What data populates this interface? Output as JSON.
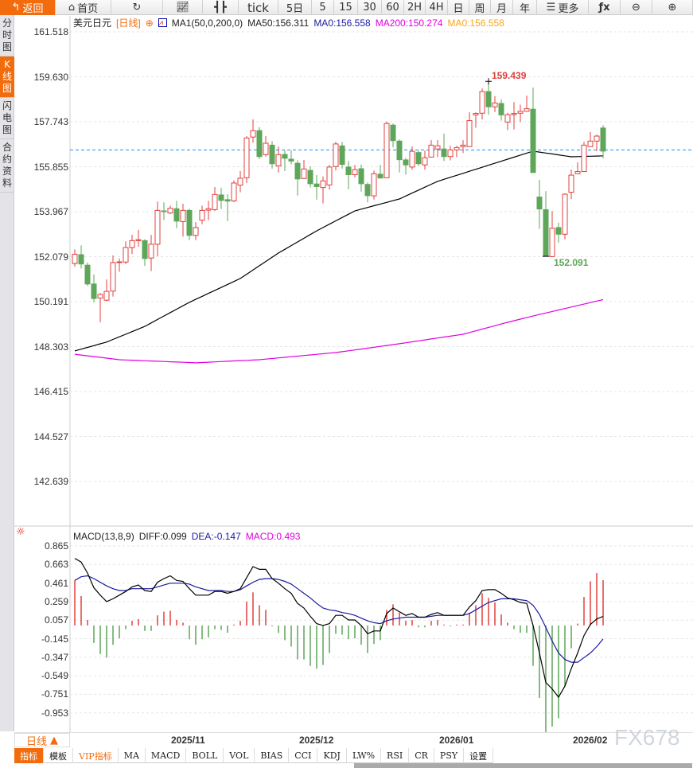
{
  "toolbar": {
    "back": "返回",
    "home": "首页",
    "tick": "tick",
    "five_day": "5日",
    "periods": [
      "5",
      "15",
      "30",
      "60",
      "2H",
      "4H",
      "日",
      "周",
      "月",
      "年"
    ],
    "more": "更多",
    "fx": "ƒx"
  },
  "sidebar": {
    "items": [
      "分时图",
      "K线图",
      "闪电图",
      "合约资料"
    ],
    "active": 1
  },
  "main": {
    "symbol": "美元日元",
    "period_tag": "[日线]",
    "ma_name": "MA1(50,0,200,0)",
    "ma50": "MA50:156.311",
    "ma0a": "MA0:156.558",
    "ma200": "MA200:150.274",
    "ma0b": "MA0:156.558",
    "y_labels": [
      "161.518",
      "159.630",
      "157.743",
      "155.855",
      "153.967",
      "152.079",
      "150.191",
      "148.303",
      "146.415",
      "144.527",
      "142.639"
    ],
    "high_label": "159.439",
    "low_label": "152.091",
    "last_price": 156.558
  },
  "macd": {
    "title": "MACD(13,8,9)",
    "diff": "DIFF:0.099",
    "dea": "DEA:-0.147",
    "macd": "MACD:0.493",
    "y_labels": [
      "0.865",
      "0.663",
      "0.461",
      "0.259",
      "0.057",
      "-0.145",
      "-0.347",
      "-0.549",
      "-0.751",
      "-0.953"
    ]
  },
  "xaxis": {
    "period": "日线",
    "labels": [
      "2025/11",
      "2025/12",
      "2026/01",
      "2026/02"
    ]
  },
  "bottom_tabs": [
    "指标",
    "模板",
    "VIP指标",
    "MA",
    "MACD",
    "BOLL",
    "VOL",
    "BIAS",
    "CCI",
    "KDJ",
    "LW%",
    "RSI",
    "CR",
    "PSY",
    "设置"
  ],
  "watermark": "FX678",
  "colors": {
    "up": "#e0403c",
    "down": "#5ea65a",
    "accent": "#f26c0d",
    "ma50": "#000000",
    "ma200": "#e000e0",
    "dea": "#1a1aa0",
    "last": "#1e90ff"
  },
  "chart_data": [
    {
      "type": "candlestick",
      "ohlc": [
        [
          151.79,
          152.38,
          151.66,
          152.18
        ],
        [
          152.16,
          152.55,
          151.58,
          151.77
        ],
        [
          151.72,
          151.83,
          150.85,
          150.93
        ],
        [
          150.93,
          151.33,
          150.16,
          150.32
        ],
        [
          150.34,
          150.55,
          149.32,
          150.49
        ],
        [
          150.25,
          151.12,
          150.2,
          150.62
        ],
        [
          150.63,
          152.13,
          150.4,
          151.83
        ],
        [
          151.83,
          152.0,
          151.44,
          151.86
        ],
        [
          151.85,
          152.72,
          151.77,
          152.46
        ],
        [
          152.46,
          152.99,
          152.19,
          152.75
        ],
        [
          152.75,
          153.2,
          152.5,
          152.79
        ],
        [
          152.75,
          152.81,
          151.69,
          152.0
        ],
        [
          152.02,
          152.99,
          151.47,
          152.6
        ],
        [
          152.6,
          154.39,
          152.1,
          154.02
        ],
        [
          154.0,
          154.36,
          153.61,
          153.98
        ],
        [
          153.91,
          154.22,
          153.86,
          154.11
        ],
        [
          154.09,
          154.42,
          153.27,
          153.57
        ],
        [
          153.55,
          154.3,
          152.92,
          154.02
        ],
        [
          154.02,
          154.09,
          152.77,
          152.97
        ],
        [
          152.97,
          153.53,
          152.77,
          153.3
        ],
        [
          153.61,
          154.22,
          153.44,
          154.02
        ],
        [
          154.03,
          154.42,
          153.61,
          154.09
        ],
        [
          154.05,
          155.0,
          154.0,
          154.69
        ],
        [
          154.67,
          154.97,
          154.08,
          154.44
        ],
        [
          154.47,
          154.7,
          153.57,
          154.41
        ],
        [
          154.42,
          155.28,
          154.37,
          155.17
        ],
        [
          155.08,
          155.67,
          154.78,
          155.37
        ],
        [
          155.39,
          157.14,
          155.17,
          157.06
        ],
        [
          157.1,
          157.84,
          156.86,
          157.37
        ],
        [
          157.37,
          157.51,
          156.17,
          156.28
        ],
        [
          156.36,
          157.14,
          156.28,
          156.84
        ],
        [
          156.76,
          156.93,
          155.78,
          155.98
        ],
        [
          155.89,
          156.7,
          155.61,
          156.36
        ],
        [
          156.37,
          156.54,
          155.67,
          156.21
        ],
        [
          156.17,
          156.54,
          155.95,
          156.09
        ],
        [
          156.0,
          156.12,
          154.64,
          155.34
        ],
        [
          155.36,
          156.14,
          155.34,
          155.76
        ],
        [
          155.7,
          155.87,
          154.98,
          155.14
        ],
        [
          155.13,
          155.5,
          154.47,
          155.02
        ],
        [
          154.98,
          155.45,
          154.31,
          155.26
        ],
        [
          155.09,
          155.93,
          154.89,
          155.84
        ],
        [
          155.86,
          156.9,
          155.7,
          156.81
        ],
        [
          156.73,
          156.9,
          155.78,
          155.95
        ],
        [
          155.84,
          156.09,
          154.91,
          155.52
        ],
        [
          155.52,
          155.93,
          155.41,
          155.73
        ],
        [
          155.77,
          155.95,
          154.81,
          155.14
        ],
        [
          155.11,
          155.19,
          154.36,
          154.64
        ],
        [
          154.63,
          155.69,
          154.48,
          155.56
        ],
        [
          155.54,
          155.93,
          155.38,
          155.38
        ],
        [
          155.39,
          157.75,
          155.39,
          157.67
        ],
        [
          157.6,
          157.67,
          156.67,
          156.95
        ],
        [
          156.93,
          157.0,
          155.61,
          156.15
        ],
        [
          156.14,
          156.23,
          155.52,
          155.93
        ],
        [
          155.84,
          156.7,
          155.73,
          156.5
        ],
        [
          156.45,
          156.53,
          155.89,
          155.98
        ],
        [
          155.93,
          156.53,
          155.73,
          156.23
        ],
        [
          156.26,
          156.97,
          156.26,
          156.76
        ],
        [
          156.6,
          156.97,
          156.26,
          156.73
        ],
        [
          156.6,
          157.25,
          156.09,
          156.28
        ],
        [
          156.28,
          156.73,
          156.12,
          156.56
        ],
        [
          156.56,
          156.73,
          156.26,
          156.66
        ],
        [
          156.7,
          156.97,
          156.43,
          156.76
        ],
        [
          156.7,
          158.14,
          156.7,
          157.79
        ],
        [
          158.03,
          158.14,
          157.49,
          158.09
        ],
        [
          158.1,
          159.14,
          157.84,
          159.01
        ],
        [
          159.01,
          159.439,
          158.04,
          158.37
        ],
        [
          158.37,
          158.82,
          158.15,
          158.53
        ],
        [
          158.51,
          158.68,
          157.79,
          158.03
        ],
        [
          157.73,
          158.12,
          157.4,
          158.04
        ],
        [
          158.04,
          158.57,
          157.42,
          158.09
        ],
        [
          158.1,
          158.46,
          157.73,
          158.18
        ],
        [
          158.18,
          158.84,
          158.18,
          158.29
        ],
        [
          158.27,
          159.18,
          155.61,
          155.61
        ],
        [
          154.58,
          155.3,
          153.25,
          154.08
        ],
        [
          154.05,
          154.83,
          152.091,
          152.1
        ],
        [
          152.08,
          153.99,
          152.08,
          153.27
        ],
        [
          153.3,
          153.5,
          152.66,
          153.02
        ],
        [
          153.02,
          154.74,
          152.81,
          154.7
        ],
        [
          154.78,
          155.74,
          154.5,
          155.5
        ],
        [
          155.56,
          156.04,
          155.56,
          155.65
        ],
        [
          155.65,
          156.9,
          155.65,
          156.76
        ],
        [
          156.7,
          157.31,
          156.7,
          156.93
        ],
        [
          156.93,
          157.2,
          156.51,
          157.14
        ],
        [
          157.48,
          157.6,
          156.2,
          156.51
        ]
      ],
      "ma50": [
        [
          0,
          148.12
        ],
        [
          5,
          148.49
        ],
        [
          11,
          149.15
        ],
        [
          18,
          150.16
        ],
        [
          26,
          151.16
        ],
        [
          32,
          152.23
        ],
        [
          38,
          153.16
        ],
        [
          44,
          154.0
        ],
        [
          51,
          154.5
        ],
        [
          57,
          155.24
        ],
        [
          66,
          156.0
        ],
        [
          72,
          156.51
        ],
        [
          78,
          156.27
        ],
        [
          83,
          156.311
        ]
      ],
      "ma200": [
        [
          0,
          147.98
        ],
        [
          7,
          147.75
        ],
        [
          19,
          147.62
        ],
        [
          29,
          147.75
        ],
        [
          41,
          148.05
        ],
        [
          51,
          148.42
        ],
        [
          61,
          148.82
        ],
        [
          68,
          149.32
        ],
        [
          73,
          149.65
        ],
        [
          83,
          150.274
        ]
      ],
      "ylim": [
        142.639,
        161.518
      ]
    },
    {
      "type": "macd",
      "hist": [
        0.49,
        0.32,
        0.06,
        -0.19,
        -0.31,
        -0.35,
        -0.21,
        -0.14,
        -0.04,
        0.05,
        0.07,
        -0.06,
        -0.06,
        0.11,
        0.15,
        0.16,
        0.06,
        0.03,
        -0.15,
        -0.21,
        -0.15,
        -0.13,
        -0.04,
        -0.05,
        -0.08,
        0.01,
        0.05,
        0.26,
        0.36,
        0.22,
        0.17,
        -0.01,
        -0.08,
        -0.16,
        -0.23,
        -0.37,
        -0.37,
        -0.44,
        -0.47,
        -0.43,
        -0.3,
        -0.09,
        -0.1,
        -0.15,
        -0.14,
        -0.21,
        -0.3,
        -0.2,
        -0.16,
        0.17,
        0.23,
        0.14,
        0.05,
        0.06,
        -0.02,
        -0.02,
        0.05,
        0.06,
        0.01,
        -0.01,
        0.01,
        0.01,
        0.14,
        0.22,
        0.35,
        0.3,
        0.25,
        0.12,
        0.03,
        -0.04,
        -0.08,
        -0.08,
        -0.44,
        -0.79,
        -1.16,
        -1.1,
        -1.01,
        -0.66,
        -0.25,
        0.02,
        0.31,
        0.48,
        0.57,
        0.493
      ],
      "diff": [
        0.73,
        0.69,
        0.57,
        0.41,
        0.33,
        0.26,
        0.29,
        0.33,
        0.37,
        0.42,
        0.44,
        0.38,
        0.37,
        0.47,
        0.51,
        0.54,
        0.49,
        0.48,
        0.4,
        0.33,
        0.33,
        0.33,
        0.37,
        0.37,
        0.35,
        0.37,
        0.4,
        0.52,
        0.64,
        0.61,
        0.61,
        0.51,
        0.46,
        0.4,
        0.35,
        0.24,
        0.19,
        0.1,
        0.02,
        0.0,
        0.02,
        0.11,
        0.11,
        0.06,
        0.06,
        0.0,
        -0.09,
        -0.06,
        -0.06,
        0.13,
        0.19,
        0.15,
        0.11,
        0.13,
        0.09,
        0.09,
        0.12,
        0.14,
        0.11,
        0.11,
        0.11,
        0.11,
        0.2,
        0.27,
        0.38,
        0.39,
        0.39,
        0.35,
        0.3,
        0.28,
        0.25,
        0.24,
        0.0,
        -0.3,
        -0.62,
        -0.69,
        -0.78,
        -0.66,
        -0.47,
        -0.3,
        -0.11,
        0.01,
        0.07,
        0.099
      ],
      "dea": [
        0.49,
        0.53,
        0.54,
        0.51,
        0.47,
        0.43,
        0.4,
        0.38,
        0.38,
        0.4,
        0.4,
        0.4,
        0.4,
        0.42,
        0.44,
        0.46,
        0.46,
        0.46,
        0.45,
        0.42,
        0.4,
        0.38,
        0.38,
        0.38,
        0.37,
        0.37,
        0.39,
        0.43,
        0.47,
        0.5,
        0.51,
        0.51,
        0.5,
        0.48,
        0.45,
        0.4,
        0.35,
        0.3,
        0.24,
        0.19,
        0.17,
        0.16,
        0.14,
        0.13,
        0.11,
        0.08,
        0.05,
        0.03,
        0.02,
        0.05,
        0.07,
        0.08,
        0.09,
        0.09,
        0.09,
        0.09,
        0.1,
        0.11,
        0.11,
        0.11,
        0.11,
        0.11,
        0.13,
        0.17,
        0.21,
        0.25,
        0.27,
        0.29,
        0.29,
        0.29,
        0.28,
        0.27,
        0.22,
        0.12,
        -0.02,
        -0.17,
        -0.3,
        -0.37,
        -0.4,
        -0.4,
        -0.35,
        -0.3,
        -0.23,
        -0.147
      ],
      "ylim": [
        -0.953,
        0.865
      ]
    }
  ]
}
